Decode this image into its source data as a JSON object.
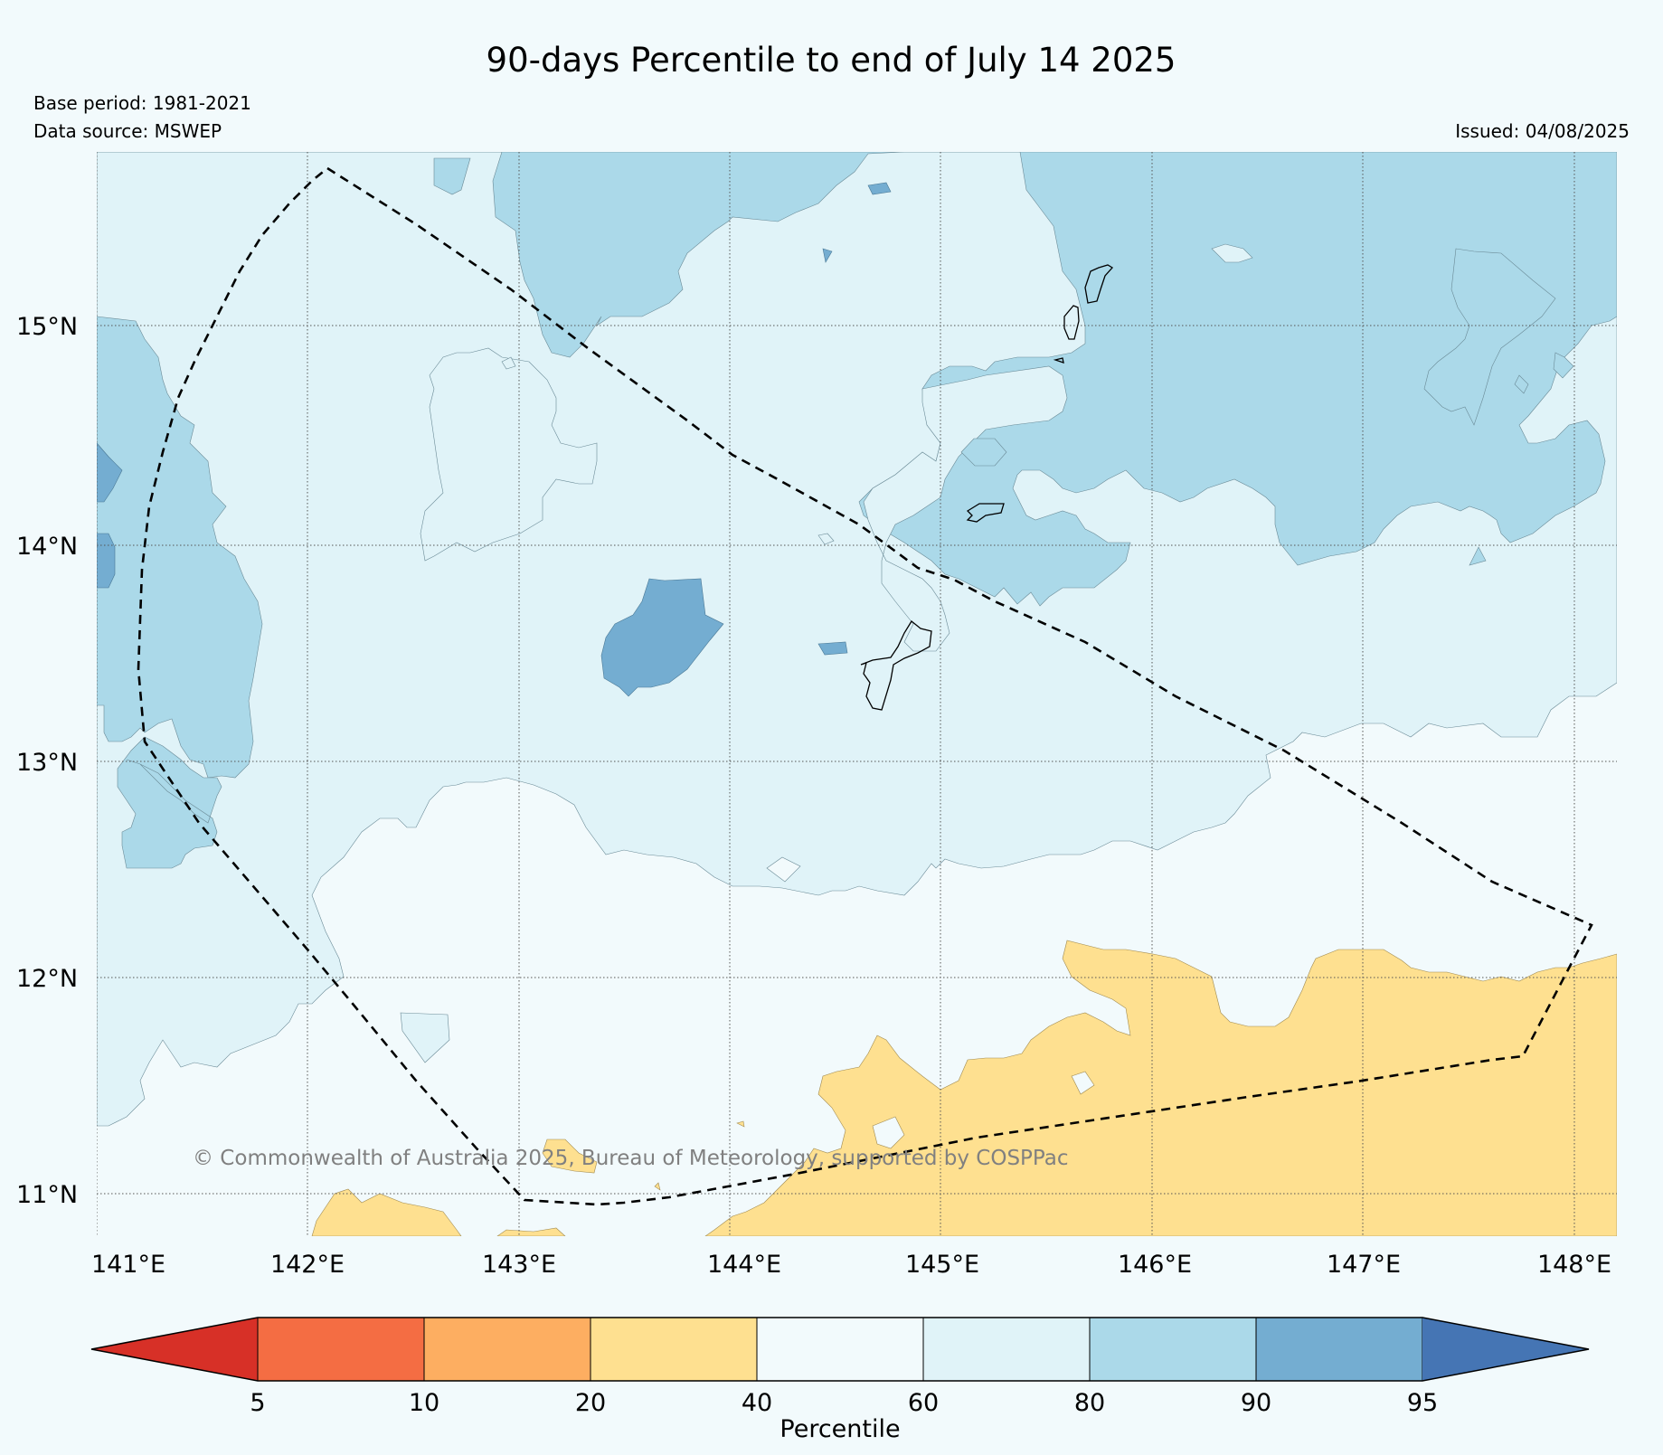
{
  "title": "90-days Percentile to end of July 14 2025",
  "base_period": "Base period: 1981-2021",
  "data_source": "Data source: MSWEP",
  "issued": "Issued: 04/08/2025",
  "copyright": "© Commonwealth of Australia 2025, Bureau of Meteorology, supported by COSPPac",
  "lat_labels": [
    "15°N",
    "14°N",
    "13°N",
    "12°N",
    "11°N"
  ],
  "lon_labels": [
    "141°E",
    "142°E",
    "143°E",
    "144°E",
    "145°E",
    "146°E",
    "147°E",
    "148°E"
  ],
  "colorbar": {
    "label": "Percentile",
    "ticks": [
      "5",
      "10",
      "20",
      "40",
      "60",
      "80",
      "90",
      "95"
    ],
    "colors": [
      "#d73027",
      "#f46d43",
      "#fdae61",
      "#fee090",
      "#f2fafc",
      "#e0f3f8",
      "#abd9e9",
      "#74add1",
      "#4575b4"
    ]
  },
  "colors": {
    "background": "#f2fafc",
    "p40_60": "#f2fafc",
    "p60_80": "#e0f3f8",
    "p80_90": "#abd9e9",
    "p90_95": "#74add1",
    "p20_40": "#fee090"
  }
}
